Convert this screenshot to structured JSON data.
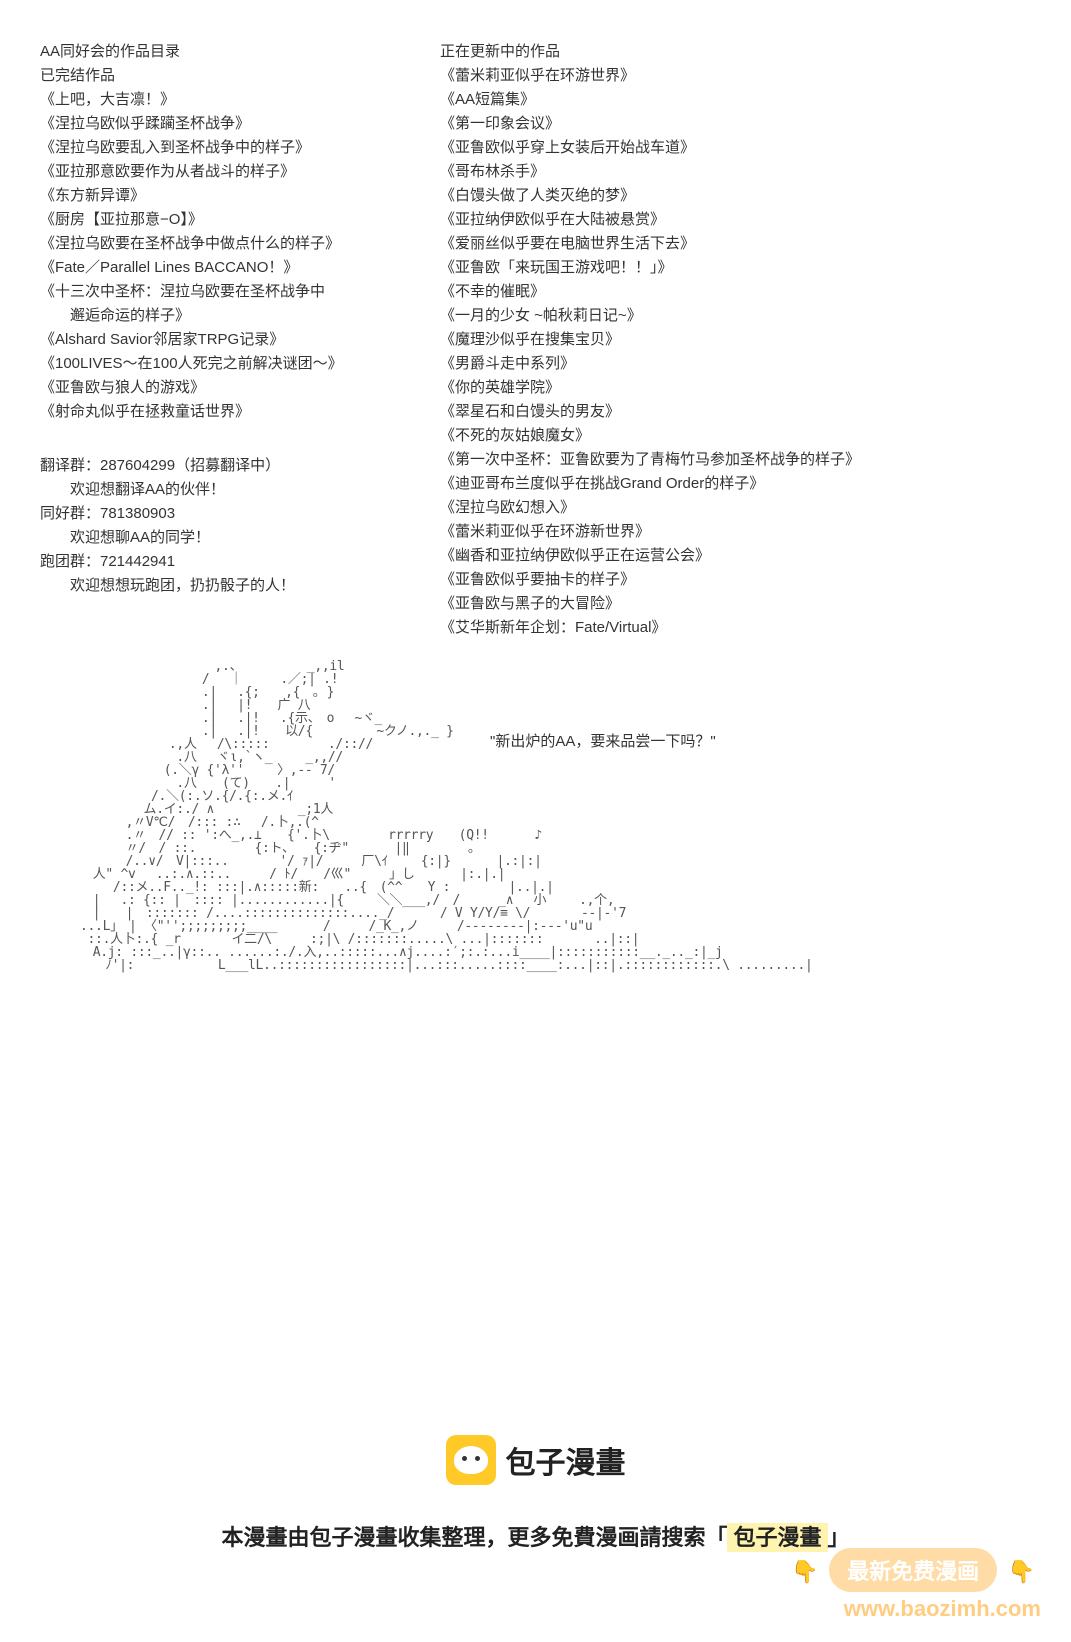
{
  "left": {
    "title": "AA同好会的作品目录",
    "subtitle": "已完结作品",
    "items": [
      "《上吧，大吉凛！》",
      "《涅拉乌欧似乎蹂躏圣杯战争》",
      "《涅拉乌欧要乱入到圣杯战争中的样子》",
      "《亚拉那意欧要作为从者战斗的样子》",
      "《东方新异谭》",
      "《厨房【亚拉那意−O】》",
      "《涅拉乌欧要在圣杯战争中做点什么的样子》",
      "《Fate／Parallel Lines BACCANO！》",
      "《十三次中圣杯：涅拉乌欧要在圣杯战争中",
      "邂逅命运的样子》",
      "《Alshard Savior邻居家TRPG记录》",
      "《100LIVES～在100人死完之前解决谜团～》",
      "《亚鲁欧与狼人的游戏》",
      "《射命丸似乎在拯救童话世界》"
    ],
    "groups": [
      "翻译群：287604299（招募翻译中）",
      "欢迎想翻译AA的伙伴！",
      "同好群：781380903",
      "欢迎想聊AA的同学！",
      "跑团群：721442941",
      "欢迎想想玩跑团，扔扔骰子的人！"
    ]
  },
  "right": {
    "title": "正在更新中的作品",
    "items": [
      "《蕾米莉亚似乎在环游世界》",
      "《AA短篇集》",
      "《第一印象会议》",
      "《亚鲁欧似乎穿上女装后开始战车道》",
      "《哥布林杀手》",
      "《白馒头做了人类灭绝的梦》",
      "《亚拉纳伊欧似乎在大陆被悬赏》",
      "《爱丽丝似乎要在电脑世界生活下去》",
      "《亚鲁欧「来玩国王游戏吧！！」》",
      "《不幸的催眠》",
      "《一月的少女 ~帕秋莉日记~》",
      "《魔理沙似乎在搜集宝贝》",
      "《男爵斗走中系列》",
      "《你的英雄学院》",
      "《翠星石和白馒头的男友》",
      "《不死的灰姑娘魔女》",
      "《第一次中圣杯：亚鲁欧要为了青梅竹马参加圣杯战争的样子》",
      "《迪亚哥布兰度似乎在挑战Grand Order的样子》",
      "《涅拉乌欧幻想入》",
      "《蕾米莉亚似乎在环游新世界》",
      "《幽香和亚拉纳伊欧似乎正在运营公会》",
      "《亚鲁欧似乎要抽卡的样子》",
      "《亚鲁欧与黑子的大冒险》",
      "《艾华斯新年企划：Fate/Virtual》"
    ]
  },
  "speech": "\"新出炉的AA，要来品尝一下吗？\"",
  "ascii": "　　　　　　　　　　 ,.、　　　　　 _,,il\n　　　　　　　　　 /　 ｜　　　.／;| .!\n　　　　　　　　　 .|　 .{;　　,{　｡ }\n　　　　　　　　　 .|　 |!　　广 八\n　　　　　　　　　 .|　 .|!　 .{示、　o　 ~ヾ_\n　　　　　　　　　 .|　 .|!　　以/{　　　　　~クノ.,._ }\n　　　　　　　.,人　 /\\:::::　　　　 ./:://\n　　　　　　　 .八　 ヾι,`ヽ_　　 _,,//\n　　　　　　 (.＼γ {'λ''　　 〉,-- 7/\n　　　　　　　 .八　　(て)　　.|　　　'\n　　　　　 /.＼(:.ソ.{/.{:.メ.ｲ\n　　　　　ム.イ:./ ∧　　　　　　 _;1人\n　　　 ,〃V℃/　/::: :∴　 /.卜,.(^\n　　　 .〃　// :: ':へ_,.⊥　　{'.卜\\　　　　 rrrrry　　(Q!! 　　　♪\n　　　 〃/　/ ::.　　　　 {:ト、　　{:ヂ\"　　　 |‖　　　　 。\n　　　 /..∨/　V|:::..　　　　'/ ｧ|/　　　厂\\ｲ　　 {:|}　　　 |.:|:|\n　人\" ^v　 ..:.∧.::..　　　/ ﾄ/　　/巛\"　　　」し　　　 |:.|.|\n　　 /::メ..F.._!: :::|.∧:::::新:　　..{　(^^　　Y :　　　　 |..|.|\n　|　 .: {:: |　:::: |............|{　　 ＼＼___,/　/　　　_∧　 小　　 .,个,\n　|　　|　::::::: /....::::::::::::::...._/　　　 / V Y/Y/≡ \\/　　　　--|-'7\n...L」　| 〈\"'';;;;;;;;;____　　　 /　　　/_K_,ノ　　　/--------|:---'u\"u\n ::.人卜:.{ _r　　　　イ二/\\　　　:;|\\ /:::::::.....\\ ...|:::::::　　　　..|::|\n　A.j: :::_..|γ::.. ......:./.入,..:::::...∧j....:′;:.:...i____|:::::::::::__._.._:|_j\n　　ﾉ'|:　　　　　　 L___lL..:::::::::::::::::|...:::.....::::____:...|::|.::::::::::::.\\ .........|",
  "brand": {
    "name": "包子漫畫",
    "desc_prefix": "本漫畫由包子漫畫收集整理，更多免費漫画請搜索「",
    "desc_highlight": "包子漫畫",
    "desc_suffix": "」"
  },
  "watermark": {
    "button": "最新免费漫画",
    "url": "www.baozimh.com",
    "hand": "👇"
  },
  "colors": {
    "text": "#333333",
    "brand_yellow": "#ffca28",
    "highlight_bg": "#fff3b0",
    "wm_orange": "rgba(255,183,77,0.6)"
  }
}
